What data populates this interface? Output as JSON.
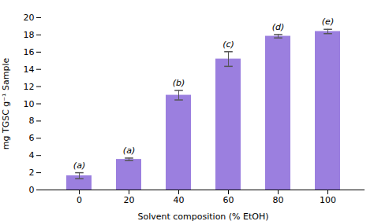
{
  "chart_data": {
    "type": "bar",
    "xlabel": "Solvent composition (% EtOH)",
    "ylabel": "mg TGSC g⁻¹ Sample",
    "categories": [
      "0",
      "20",
      "40",
      "60",
      "80",
      "100"
    ],
    "values": [
      1.65,
      3.55,
      11.0,
      15.2,
      17.85,
      18.4
    ],
    "errors": [
      0.35,
      0.15,
      0.55,
      0.85,
      0.2,
      0.25
    ],
    "annotations": [
      "(a)",
      "(a)",
      "(b)",
      "(c)",
      "(d)",
      "(e)"
    ],
    "color": "#9b7fdf",
    "ylim": [
      0,
      20
    ],
    "yticks": [
      0,
      2,
      4,
      6,
      8,
      10,
      12,
      14,
      16,
      18,
      20
    ],
    "grid": false
  }
}
